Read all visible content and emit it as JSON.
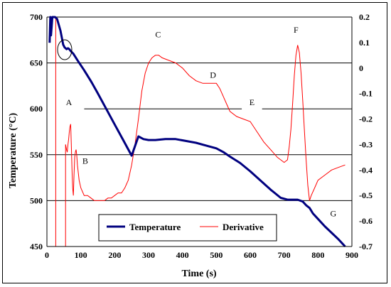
{
  "chart_data": {
    "type": "line",
    "title": "",
    "xlabel": "Time (s)",
    "ylabel": "Temperature (°C)",
    "xlim": [
      0,
      900
    ],
    "ylim": [
      450,
      700
    ],
    "y2lim": [
      -0.7,
      0.2
    ],
    "x_ticks": [
      0,
      100,
      200,
      300,
      400,
      500,
      600,
      700,
      800,
      900
    ],
    "y_ticks": [
      450,
      500,
      550,
      600,
      650,
      700
    ],
    "y2_ticks": [
      "-0.7",
      "-0.6",
      "-0.5",
      "-0.4",
      "-0.3",
      "-0.2",
      "-0.1",
      "0",
      "0.1",
      "0.2"
    ],
    "grid": "horizontal",
    "legend_position": "bottom-center",
    "series": [
      {
        "name": "Temperature",
        "axis": "left",
        "color": "#00007f",
        "x": [
          8,
          10,
          12,
          14,
          16,
          20,
          24,
          30,
          40,
          48,
          52,
          58,
          62,
          66,
          70,
          78,
          90,
          110,
          130,
          150,
          175,
          200,
          225,
          250,
          270,
          285,
          300,
          320,
          350,
          380,
          410,
          440,
          470,
          500,
          520,
          540,
          570,
          600,
          630,
          660,
          690,
          710,
          725,
          740,
          755,
          765,
          775,
          785,
          800,
          820,
          840,
          860,
          880
        ],
        "values": [
          672,
          700,
          680,
          690,
          700,
          700,
          700,
          698,
          685,
          670,
          667,
          665,
          666,
          665,
          663,
          660,
          653,
          642,
          630,
          617,
          600,
          583,
          566,
          549,
          570,
          567,
          566,
          566,
          567,
          567,
          565,
          563,
          560,
          557,
          553,
          548,
          541,
          532,
          522,
          512,
          503,
          501,
          501,
          501,
          499,
          495,
          492,
          486,
          480,
          472,
          465,
          458,
          450
        ]
      },
      {
        "name": "Derivative",
        "axis": "right",
        "color": "#ff0000",
        "x": [
          55,
          58,
          60,
          62,
          64,
          66,
          68,
          70,
          72,
          74,
          76,
          78,
          80,
          82,
          84,
          86,
          88,
          90,
          95,
          100,
          110,
          120,
          130,
          140,
          150,
          160,
          170,
          180,
          190,
          200,
          210,
          220,
          230,
          240,
          250,
          260,
          270,
          280,
          290,
          300,
          310,
          320,
          330,
          340,
          360,
          380,
          400,
          420,
          440,
          460,
          480,
          500,
          510,
          520,
          530,
          540,
          560,
          580,
          600,
          620,
          640,
          660,
          680,
          700,
          710,
          715,
          720,
          725,
          730,
          735,
          740,
          745,
          750,
          755,
          760,
          765,
          770,
          775,
          780,
          790,
          800,
          820,
          840,
          860,
          880
        ],
        "values": [
          -0.3,
          -0.32,
          -0.33,
          -0.3,
          -0.28,
          -0.25,
          -0.23,
          -0.22,
          -0.3,
          -0.4,
          -0.47,
          -0.5,
          -0.42,
          -0.35,
          -0.33,
          -0.32,
          -0.34,
          -0.38,
          -0.44,
          -0.47,
          -0.5,
          -0.5,
          -0.51,
          -0.52,
          -0.52,
          -0.52,
          -0.52,
          -0.51,
          -0.51,
          -0.5,
          -0.49,
          -0.49,
          -0.47,
          -0.44,
          -0.38,
          -0.3,
          -0.2,
          -0.09,
          -0.02,
          0.02,
          0.04,
          0.05,
          0.05,
          0.04,
          0.03,
          0.02,
          0.0,
          -0.03,
          -0.05,
          -0.06,
          -0.06,
          -0.06,
          -0.08,
          -0.11,
          -0.14,
          -0.17,
          -0.19,
          -0.2,
          -0.21,
          -0.25,
          -0.29,
          -0.32,
          -0.35,
          -0.37,
          -0.36,
          -0.31,
          -0.24,
          -0.14,
          -0.03,
          0.05,
          0.09,
          0.06,
          -0.02,
          -0.13,
          -0.25,
          -0.36,
          -0.46,
          -0.52,
          -0.5,
          -0.47,
          -0.44,
          -0.42,
          -0.4,
          -0.39,
          -0.38
        ]
      }
    ],
    "annotations": [
      {
        "label": "A",
        "x": 65,
        "y": 604
      },
      {
        "label": "B",
        "x": 113,
        "y": 540
      },
      {
        "label": "C",
        "x": 328,
        "y": 678
      },
      {
        "label": "D",
        "x": 490,
        "y": 634
      },
      {
        "label": "E",
        "x": 605,
        "y": 604
      },
      {
        "label": "F",
        "x": 735,
        "y": 683
      },
      {
        "label": "G",
        "x": 845,
        "y": 483
      }
    ]
  }
}
